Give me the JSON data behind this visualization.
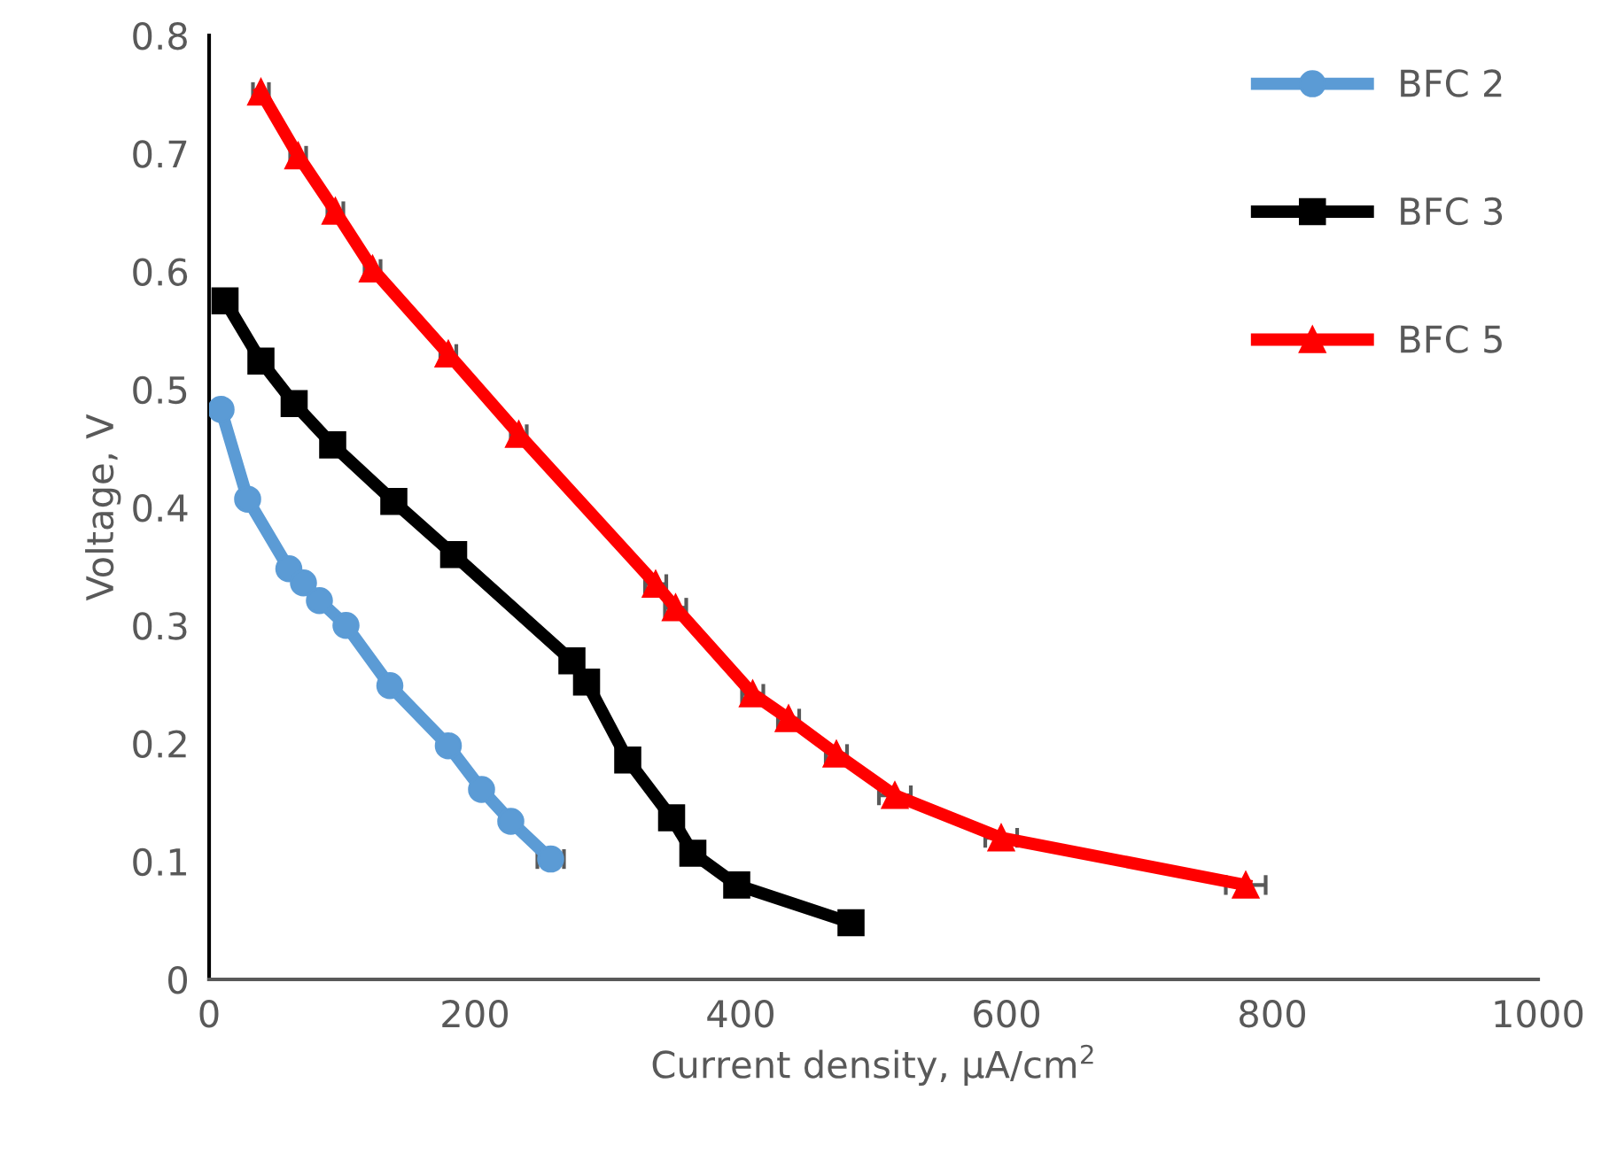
{
  "chart_data": {
    "type": "line",
    "xlabel": "Current density, µA/cm$^{2}$",
    "ylabel": "Voltage, V",
    "xlim": [
      0,
      1000
    ],
    "xticks": [
      0,
      200,
      400,
      600,
      800,
      1000
    ],
    "ylim": [
      0,
      0.8
    ],
    "yticks": [
      0,
      0.1,
      0.2,
      0.3,
      0.4,
      0.5,
      0.6,
      0.7,
      0.8
    ],
    "grid": false,
    "legend": "top right",
    "series": [
      {
        "name": "BFC 2",
        "color": "#5b9bd5",
        "marker": "circle",
        "x": [
          9,
          29,
          60,
          71,
          83,
          103,
          136,
          180,
          205,
          227,
          257
        ],
        "values": [
          0.483,
          0.407,
          0.348,
          0.336,
          0.321,
          0.3,
          0.249,
          0.198,
          0.161,
          0.134,
          0.102
        ],
        "xerrors": [
          null,
          null,
          null,
          null,
          null,
          null,
          null,
          null,
          null,
          null,
          10
        ]
      },
      {
        "name": "BFC 3",
        "color": "#000000",
        "marker": "square",
        "x": [
          12,
          39,
          64,
          93,
          139,
          184,
          273,
          284,
          315,
          348,
          364,
          397,
          483
        ],
        "values": [
          0.575,
          0.524,
          0.488,
          0.453,
          0.405,
          0.36,
          0.27,
          0.252,
          0.186,
          0.137,
          0.107,
          0.08,
          0.048
        ],
        "xerrors": [
          null,
          null,
          null,
          null,
          null,
          null,
          8,
          null,
          null,
          8,
          null,
          null,
          null
        ]
      },
      {
        "name": "BFC 5",
        "color": "#ff0000",
        "marker": "triangle",
        "x": [
          39,
          67,
          95,
          123,
          180,
          233,
          336,
          351,
          409,
          436,
          472,
          516,
          596,
          780
        ],
        "values": [
          0.752,
          0.698,
          0.651,
          0.602,
          0.53,
          0.462,
          0.335,
          0.315,
          0.242,
          0.221,
          0.191,
          0.156,
          0.12,
          0.08
        ],
        "xerrors": [
          6,
          6,
          6,
          6,
          6,
          6,
          8,
          8,
          8,
          8,
          8,
          12,
          12,
          15
        ]
      }
    ]
  }
}
